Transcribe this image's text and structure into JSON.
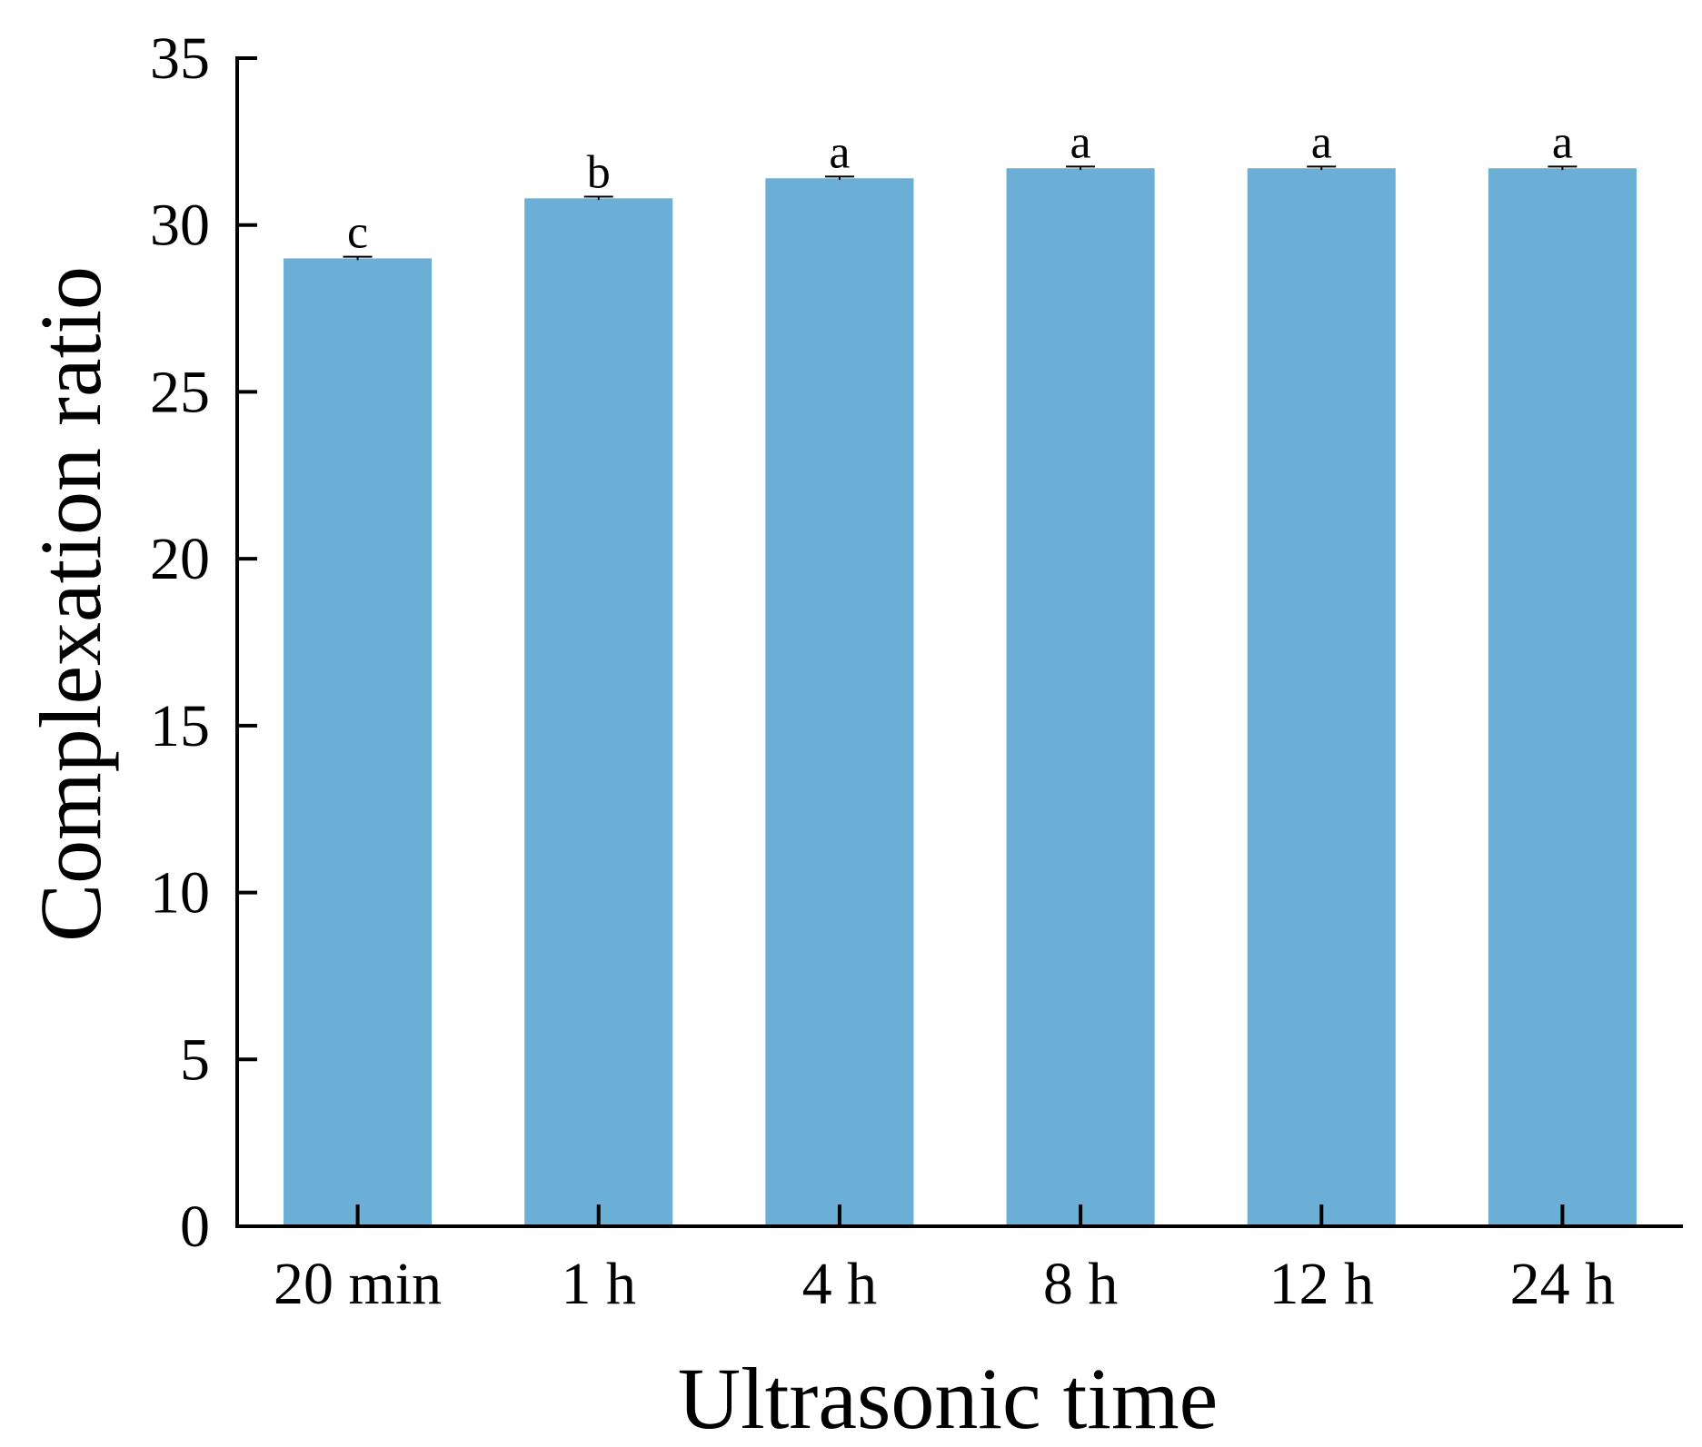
{
  "chart_data": {
    "type": "bar",
    "categories": [
      "20 min",
      "1 h",
      "4 h",
      "8 h",
      "12 h",
      "24 h"
    ],
    "values": [
      29.0,
      30.8,
      31.4,
      31.7,
      31.7,
      31.7
    ],
    "errors": [
      0.05,
      0.05,
      0.05,
      0.05,
      0.05,
      0.05
    ],
    "significance": [
      "c",
      "b",
      "a",
      "a",
      "a",
      "a"
    ],
    "xlabel": "Ultrasonic time",
    "ylabel": "Complexation ratio",
    "ylim": [
      0,
      35
    ],
    "yticks": [
      0,
      5,
      10,
      15,
      20,
      25,
      30,
      35
    ],
    "grid": false,
    "colors": {
      "bar": "#6baed6",
      "axis": "#000000"
    }
  }
}
